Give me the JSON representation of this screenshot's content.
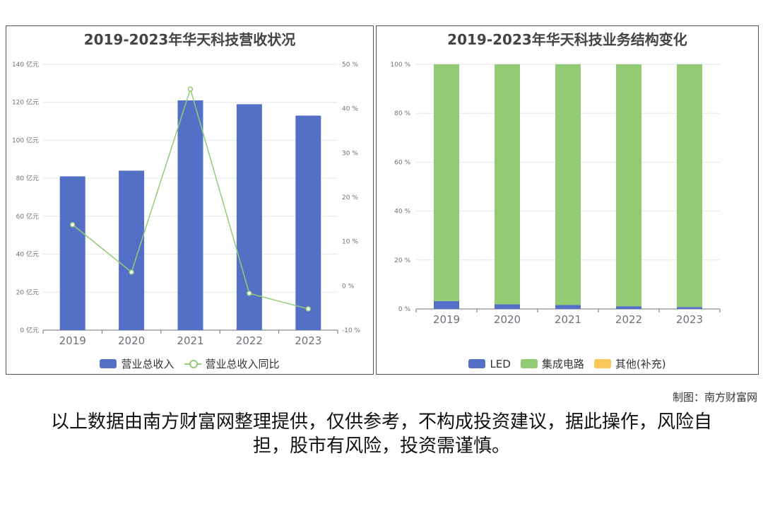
{
  "chart_data": [
    {
      "type": "bar",
      "title": "2019-2023年华天科技营收状况",
      "categories": [
        "2019",
        "2020",
        "2021",
        "2022",
        "2023"
      ],
      "series": [
        {
          "name": "营业总收入",
          "type": "bar",
          "values": [
            81,
            84,
            121,
            119,
            113
          ],
          "color": "#5470c6",
          "axis": "left"
        },
        {
          "name": "营业总收入同比",
          "type": "line",
          "values": [
            13.8,
            3.1,
            44.4,
            -1.7,
            -5.2
          ],
          "color": "#91cc75",
          "axis": "right"
        }
      ],
      "ylim": [
        0,
        140
      ],
      "y_ticks": [
        "0 亿元",
        "20 亿元",
        "40 亿元",
        "60 亿元",
        "80 亿元",
        "100 亿元",
        "120 亿元",
        "140 亿元"
      ],
      "y2lim": [
        -10,
        50
      ],
      "y2_ticks": [
        "-10 %",
        "0 %",
        "10 %",
        "20 %",
        "30 %",
        "40 %",
        "50 %"
      ],
      "grid": true,
      "legend": "bottom"
    },
    {
      "type": "bar",
      "stacked": true,
      "title": "2019-2023年华天科技业务结构变化",
      "categories": [
        "2019",
        "2020",
        "2021",
        "2022",
        "2023"
      ],
      "series": [
        {
          "name": "LED",
          "values": [
            3.2,
            1.9,
            1.6,
            1.1,
            0.8
          ],
          "color": "#5470c6"
        },
        {
          "name": "集成电路",
          "values": [
            96.8,
            98.1,
            98.4,
            98.9,
            99.2
          ],
          "color": "#91cc75"
        },
        {
          "name": "其他(补充)",
          "values": [
            0,
            0,
            0,
            0,
            0
          ],
          "color": "#fac858"
        }
      ],
      "ylim": [
        0,
        100
      ],
      "y_ticks": [
        "0 %",
        "20 %",
        "40 %",
        "60 %",
        "80 %",
        "100 %"
      ],
      "grid": true,
      "legend": "bottom"
    }
  ],
  "credit": "制图：南方财富网",
  "disclaimer": "以上数据由南方财富网整理提供，仅供参考，不构成投资建议，据此操作，风险自担，股市有风险，投资需谨慎。"
}
